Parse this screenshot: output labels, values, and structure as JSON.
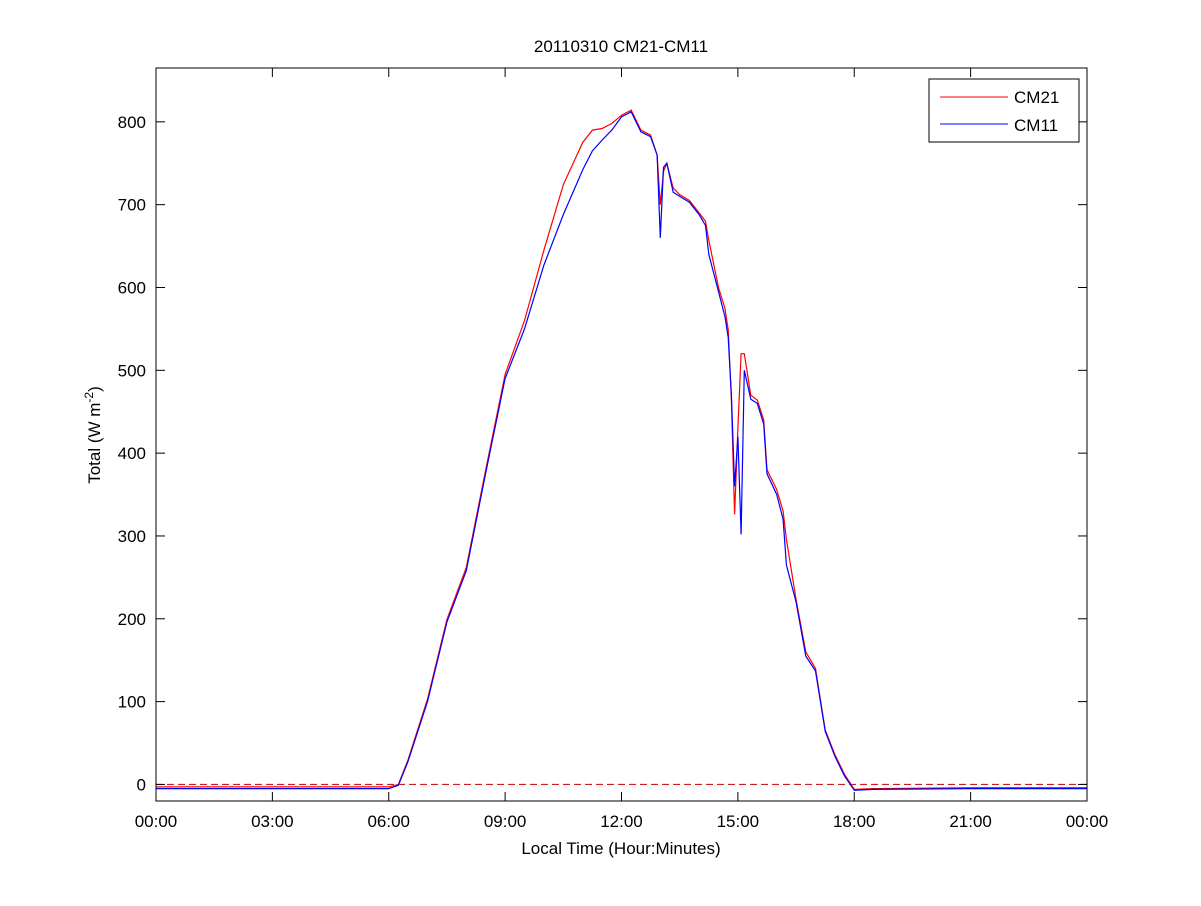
{
  "chart_data": {
    "type": "line",
    "title": "20110310 CM21-CM11",
    "xlabel": "Local Time (Hour:Minutes)",
    "ylabel": {
      "main": "Total (W m",
      "sup": "-2",
      "end": ")"
    },
    "xlim": [
      "00:00",
      "24:00"
    ],
    "ylim": [
      -20,
      865
    ],
    "xticks": [
      "00:00",
      "03:00",
      "06:00",
      "09:00",
      "12:00",
      "15:00",
      "18:00",
      "21:00",
      "00:00"
    ],
    "yticks": [
      0,
      100,
      200,
      300,
      400,
      500,
      600,
      700,
      800
    ],
    "grid": false,
    "legend_position": "top-right",
    "reference_line": {
      "value": 0,
      "style": "dashed",
      "color": "#c00000"
    },
    "series": [
      {
        "name": "CM21",
        "color": "#ff0000",
        "points": [
          [
            "00:00",
            -3
          ],
          [
            "03:00",
            -3
          ],
          [
            "06:00",
            -3
          ],
          [
            "06:15",
            0
          ],
          [
            "06:30",
            30
          ],
          [
            "07:00",
            103
          ],
          [
            "07:30",
            199
          ],
          [
            "08:00",
            262
          ],
          [
            "08:30",
            380
          ],
          [
            "09:00",
            495
          ],
          [
            "09:30",
            560
          ],
          [
            "10:00",
            645
          ],
          [
            "10:30",
            724
          ],
          [
            "11:00",
            775
          ],
          [
            "11:15",
            790
          ],
          [
            "11:30",
            792
          ],
          [
            "11:45",
            798
          ],
          [
            "12:00",
            808
          ],
          [
            "12:15",
            814
          ],
          [
            "12:30",
            790
          ],
          [
            "12:45",
            784
          ],
          [
            "12:55",
            760
          ],
          [
            "13:00",
            700
          ],
          [
            "13:05",
            740
          ],
          [
            "13:10",
            750
          ],
          [
            "13:20",
            720
          ],
          [
            "13:30",
            712
          ],
          [
            "13:45",
            705
          ],
          [
            "14:00",
            690
          ],
          [
            "14:10",
            680
          ],
          [
            "14:15",
            657
          ],
          [
            "14:30",
            600
          ],
          [
            "14:40",
            575
          ],
          [
            "14:45",
            549
          ],
          [
            "14:50",
            464
          ],
          [
            "14:55",
            326
          ],
          [
            "15:00",
            430
          ],
          [
            "15:05",
            520
          ],
          [
            "15:10",
            520
          ],
          [
            "15:20",
            470
          ],
          [
            "15:30",
            464
          ],
          [
            "15:40",
            440
          ],
          [
            "15:45",
            380
          ],
          [
            "16:00",
            356
          ],
          [
            "16:10",
            330
          ],
          [
            "16:15",
            296
          ],
          [
            "16:30",
            223
          ],
          [
            "16:45",
            160
          ],
          [
            "17:00",
            140
          ],
          [
            "17:15",
            66
          ],
          [
            "17:30",
            36
          ],
          [
            "17:45",
            12
          ],
          [
            "18:00",
            -6
          ],
          [
            "18:30",
            -5
          ],
          [
            "21:00",
            -4
          ],
          [
            "24:00",
            -4
          ]
        ]
      },
      {
        "name": "CM11",
        "color": "#0000ff",
        "points": [
          [
            "00:00",
            -5
          ],
          [
            "03:00",
            -5
          ],
          [
            "06:00",
            -5
          ],
          [
            "06:15",
            -1
          ],
          [
            "06:30",
            28
          ],
          [
            "07:00",
            100
          ],
          [
            "07:30",
            196
          ],
          [
            "08:00",
            258
          ],
          [
            "08:30",
            376
          ],
          [
            "09:00",
            490
          ],
          [
            "09:30",
            550
          ],
          [
            "10:00",
            627
          ],
          [
            "10:30",
            688
          ],
          [
            "11:00",
            742
          ],
          [
            "11:15",
            765
          ],
          [
            "11:30",
            778
          ],
          [
            "11:45",
            790
          ],
          [
            "12:00",
            806
          ],
          [
            "12:15",
            812
          ],
          [
            "12:30",
            788
          ],
          [
            "12:45",
            782
          ],
          [
            "12:55",
            760
          ],
          [
            "13:00",
            660
          ],
          [
            "13:05",
            745
          ],
          [
            "13:10",
            750
          ],
          [
            "13:20",
            715
          ],
          [
            "13:30",
            710
          ],
          [
            "13:45",
            703
          ],
          [
            "14:00",
            688
          ],
          [
            "14:10",
            675
          ],
          [
            "14:15",
            640
          ],
          [
            "14:30",
            595
          ],
          [
            "14:40",
            565
          ],
          [
            "14:45",
            540
          ],
          [
            "14:50",
            470
          ],
          [
            "14:55",
            360
          ],
          [
            "15:00",
            420
          ],
          [
            "15:05",
            302
          ],
          [
            "15:10",
            500
          ],
          [
            "15:20",
            465
          ],
          [
            "15:30",
            460
          ],
          [
            "15:40",
            435
          ],
          [
            "15:45",
            375
          ],
          [
            "16:00",
            350
          ],
          [
            "16:10",
            320
          ],
          [
            "16:15",
            265
          ],
          [
            "16:30",
            220
          ],
          [
            "16:45",
            155
          ],
          [
            "17:00",
            137
          ],
          [
            "17:15",
            64
          ],
          [
            "17:30",
            34
          ],
          [
            "17:45",
            10
          ],
          [
            "18:00",
            -7
          ],
          [
            "18:30",
            -6
          ],
          [
            "21:00",
            -5
          ],
          [
            "24:00",
            -5
          ]
        ]
      }
    ]
  }
}
